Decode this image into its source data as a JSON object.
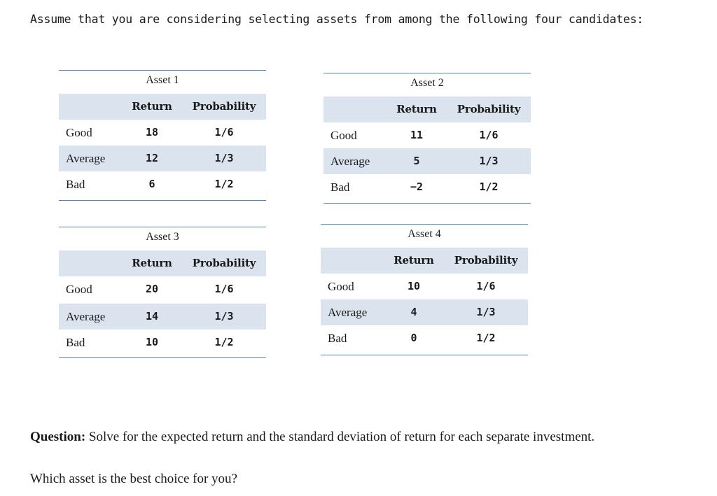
{
  "intro": "Assume that you are considering selecting assets from among the following four candidates:",
  "assets": [
    {
      "title": "Asset 1",
      "header": {
        "return": "Return",
        "probability": "Probability"
      },
      "rows": [
        {
          "label": "Good",
          "return": "18",
          "probability": "1/6"
        },
        {
          "label": "Average",
          "return": "12",
          "probability": "1/3"
        },
        {
          "label": "Bad",
          "return": "6",
          "probability": "1/2"
        }
      ]
    },
    {
      "title": "Asset 2",
      "header": {
        "return": "Return",
        "probability": "Probability"
      },
      "rows": [
        {
          "label": "Good",
          "return": "11",
          "probability": "1/6"
        },
        {
          "label": "Average",
          "return": "5",
          "probability": "1/3"
        },
        {
          "label": "Bad",
          "return": "−2",
          "probability": "1/2"
        }
      ]
    },
    {
      "title": "Asset 3",
      "header": {
        "return": "Return",
        "probability": "Probability"
      },
      "rows": [
        {
          "label": "Good",
          "return": "20",
          "probability": "1/6"
        },
        {
          "label": "Average",
          "return": "14",
          "probability": "1/3"
        },
        {
          "label": "Bad",
          "return": "10",
          "probability": "1/2"
        }
      ]
    },
    {
      "title": "Asset 4",
      "header": {
        "return": "Return",
        "probability": "Probability"
      },
      "rows": [
        {
          "label": "Good",
          "return": "10",
          "probability": "1/6"
        },
        {
          "label": "Average",
          "return": "4",
          "probability": "1/3"
        },
        {
          "label": "Bad",
          "return": "0",
          "probability": "1/2"
        }
      ]
    }
  ],
  "question": {
    "label": "Question:",
    "text": " Solve for the expected return and the standard deviation of return for each separate investment."
  },
  "followup": "Which asset is the best choice for you?"
}
